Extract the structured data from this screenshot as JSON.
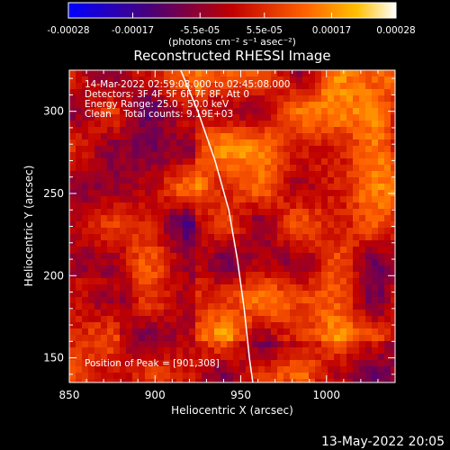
{
  "chart_data": {
    "type": "heatmap",
    "title": "Reconstructed RHESSI Image",
    "xlabel": "Heliocentric X (arcsec)",
    "ylabel": "Heliocentric Y (arcsec)",
    "xlim": [
      850,
      1040
    ],
    "ylim": [
      135,
      325
    ],
    "x_ticks": [
      "850",
      "900",
      "950",
      "1000"
    ],
    "x_tick_values": [
      850,
      900,
      950,
      1000
    ],
    "y_ticks": [
      "150",
      "200",
      "250",
      "300"
    ],
    "y_tick_values": [
      150,
      200,
      250,
      300
    ],
    "colorbar": {
      "range": [
        -0.00028,
        0.00028
      ],
      "tick_labels": [
        "-0.00028",
        "-0.00017",
        "-5.5e-05",
        "5.5e-05",
        "0.00017",
        "0.00028"
      ],
      "tick_values": [
        -0.00028,
        -0.00017,
        -5.5e-05,
        5.5e-05,
        0.00017,
        0.00028
      ],
      "unit_label": "(photons cm⁻² s⁻¹ asec⁻²)",
      "colormap": [
        "#0000ff",
        "#4a0078",
        "#c00000",
        "#ff6000",
        "#ffc000",
        "#ffffff"
      ]
    },
    "annotations": {
      "time_range": "14-Mar-2022 02:59:08.000 to 02:45:08.000",
      "detectors": "Detectors: 3F 4F 5F 6F 7F 8F, Att 0",
      "energy_range": "Energy Range: 25.0 - 50.0 keV",
      "method_and_counts": "Clean    Total counts: 9.19E+03",
      "peak": "Position of Peak = [901,308]"
    },
    "limb": {
      "points": [
        [
          915,
          325
        ],
        [
          925,
          300
        ],
        [
          935,
          270
        ],
        [
          943,
          240
        ],
        [
          948,
          210
        ],
        [
          952,
          180
        ],
        [
          955,
          150
        ],
        [
          957,
          135
        ]
      ],
      "color": "#ffffff"
    },
    "grid": false
  },
  "footer_date": "13-May-2022 20:05"
}
